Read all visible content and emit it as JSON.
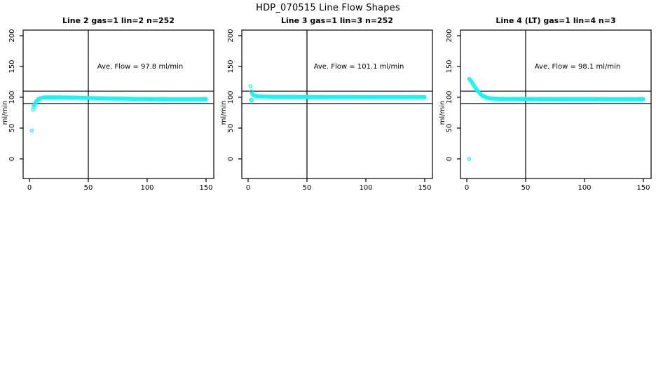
{
  "figure": {
    "title": "HDP_070515  Line Flow Shapes"
  },
  "chart_data": [
    {
      "type": "scatter",
      "title": "Line 2 gas=1 lin=2 n=252",
      "annotation": "Ave. Flow =  97.8  ml/min",
      "ave_flow": 97.8,
      "n": 252,
      "xlabel": "",
      "ylabel": "ml/min",
      "xlim": [
        0,
        157
      ],
      "ylim": [
        0,
        210
      ],
      "x_ticks": [
        0,
        50,
        100,
        150
      ],
      "y_ticks": [
        0,
        50,
        100,
        150,
        200
      ],
      "ref_lines_y": [
        90,
        110
      ],
      "vline_x": 50,
      "point_color": "#00FFFF",
      "outliers": [
        [
          2,
          46
        ],
        [
          3,
          80
        ],
        [
          3.6,
          84
        ]
      ],
      "anchors": [
        [
          4,
          87
        ],
        [
          5,
          91
        ],
        [
          6,
          94
        ],
        [
          7,
          96
        ],
        [
          8,
          97.5
        ],
        [
          10,
          99
        ],
        [
          13,
          100
        ],
        [
          25,
          100
        ],
        [
          40,
          99.5
        ],
        [
          60,
          98.5
        ],
        [
          90,
          97.5
        ],
        [
          120,
          97
        ],
        [
          150,
          97
        ]
      ],
      "n_points": 249
    },
    {
      "type": "scatter",
      "title": "Line 3 gas=1 lin=3 n=252",
      "annotation": "Ave. Flow =  101.1  ml/min",
      "ave_flow": 101.1,
      "n": 252,
      "xlabel": "",
      "ylabel": "ml/min",
      "xlim": [
        0,
        157
      ],
      "ylim": [
        0,
        210
      ],
      "x_ticks": [
        0,
        50,
        100,
        150
      ],
      "y_ticks": [
        0,
        50,
        100,
        150,
        200
      ],
      "ref_lines_y": [
        90,
        110
      ],
      "vline_x": 50,
      "point_color": "#00FFFF",
      "outliers": [
        [
          2,
          118
        ],
        [
          2.4,
          96
        ],
        [
          3.1,
          95
        ]
      ],
      "anchors": [
        [
          2.8,
          110
        ],
        [
          3.4,
          106
        ],
        [
          4.2,
          104
        ],
        [
          5.5,
          102.5
        ],
        [
          8,
          101.8
        ],
        [
          12,
          101.3
        ],
        [
          20,
          101
        ],
        [
          60,
          100.6
        ],
        [
          150,
          100.3
        ]
      ],
      "n_points": 250
    },
    {
      "type": "scatter",
      "title": "Line 4 (LT) gas=1 lin=4 n=3",
      "annotation": "Ave. Flow =  98.1  ml/min",
      "ave_flow": 98.1,
      "n": 3,
      "xlabel": "",
      "ylabel": "ml/min",
      "xlim": [
        0,
        157
      ],
      "ylim": [
        0,
        210
      ],
      "x_ticks": [
        0,
        50,
        100,
        150
      ],
      "y_ticks": [
        0,
        50,
        100,
        150,
        200
      ],
      "ref_lines_y": [
        90,
        110
      ],
      "vline_x": 50,
      "point_color": "#00FFFF",
      "outliers": [
        [
          2,
          0
        ]
      ],
      "anchors": [
        [
          2,
          130
        ],
        [
          3,
          128
        ],
        [
          4,
          125.5
        ],
        [
          5,
          122.5
        ],
        [
          6,
          119.5
        ],
        [
          7,
          116.5
        ],
        [
          8,
          113.5
        ],
        [
          9,
          111
        ],
        [
          10,
          108.5
        ],
        [
          12,
          104.5
        ],
        [
          14,
          102
        ],
        [
          16,
          100.3
        ],
        [
          18,
          99
        ],
        [
          20,
          98.3
        ],
        [
          24,
          97.8
        ],
        [
          30,
          97.5
        ],
        [
          60,
          97.2
        ],
        [
          150,
          97
        ]
      ],
      "n_points": 250
    }
  ]
}
